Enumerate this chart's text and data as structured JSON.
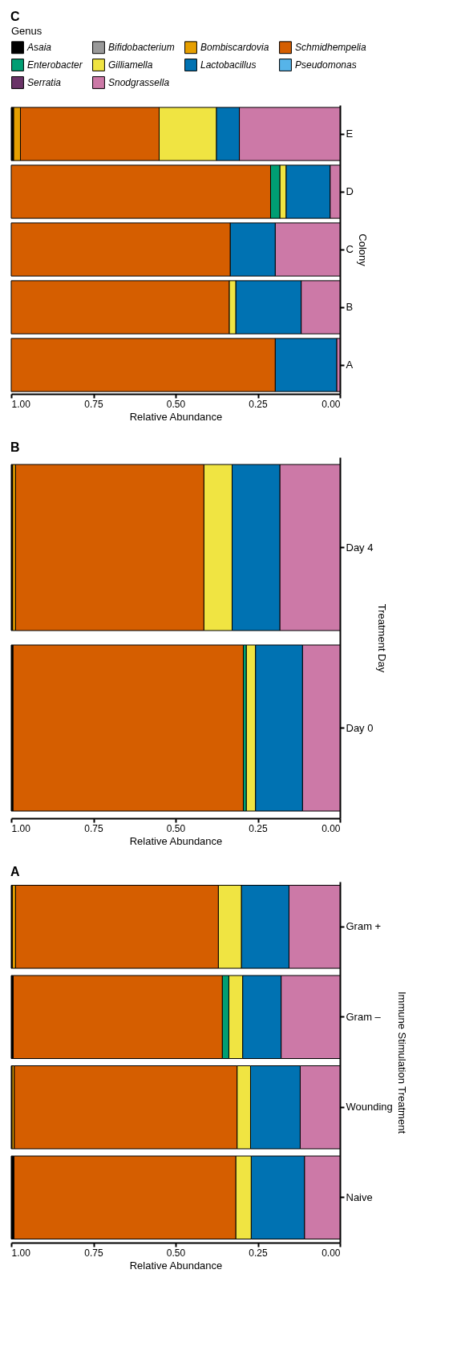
{
  "chart_data": [
    {
      "type": "bar",
      "title": "C",
      "orientation": "horizontal",
      "stacked": true,
      "xlabel": "Relative Abundance",
      "ylabel": "Colony",
      "legend_title": "Genus",
      "legend": "top",
      "grid": false,
      "categories": [
        "E",
        "D",
        "C",
        "B",
        "A"
      ],
      "xlim": [
        1.0,
        0.0
      ],
      "xticks": [
        {
          "value": 1,
          "label": "1.00"
        },
        {
          "value": 0.75,
          "label": "0.75"
        },
        {
          "value": 0.5,
          "label": "0.50"
        },
        {
          "value": 0.25,
          "label": "0.25"
        },
        {
          "value": 0,
          "label": "0.00"
        }
      ],
      "series": [
        {
          "name": "Snodgrassella",
          "color": "#cc79a7",
          "values": [
            0.306,
            0.03,
            0.197,
            0.118,
            0.01
          ]
        },
        {
          "name": "Serratia",
          "color": "#6a3468",
          "values": [
            null,
            null,
            null,
            null,
            null
          ]
        },
        {
          "name": "Pseudomonas",
          "color": "#56b4e9",
          "values": [
            null,
            null,
            null,
            null,
            null
          ]
        },
        {
          "name": "Lactobacillus",
          "color": "#0072b2",
          "values": [
            0.07,
            0.134,
            0.137,
            0.199,
            0.187
          ]
        },
        {
          "name": "Gilliamella",
          "color": "#f0e442",
          "values": [
            0.174,
            0.019,
            null,
            0.02,
            null
          ]
        },
        {
          "name": "Enterobacter",
          "color": "#009e73",
          "values": [
            null,
            0.028,
            null,
            null,
            null
          ]
        },
        {
          "name": "Schmidhempelia",
          "color": "#d55e00",
          "values": [
            0.422,
            0.789,
            0.666,
            0.663,
            0.803
          ]
        },
        {
          "name": "Bombiscardovia",
          "color": "#e69f00",
          "values": [
            0.021,
            null,
            null,
            null,
            null
          ]
        },
        {
          "name": "Bifidobacterium",
          "color": "#999999",
          "values": [
            null,
            null,
            null,
            null,
            null
          ]
        },
        {
          "name": "Asaia",
          "color": "#000000",
          "values": [
            0.007,
            null,
            null,
            null,
            null
          ]
        }
      ]
    },
    {
      "type": "bar",
      "title": "B",
      "orientation": "horizontal",
      "stacked": true,
      "xlabel": "Relative Abundance",
      "ylabel": "Treatment Day",
      "grid": false,
      "categories": [
        "Day 4",
        "Day 0"
      ],
      "xlim": [
        1.0,
        0.0
      ],
      "xticks": [
        {
          "value": 1,
          "label": "1.00"
        },
        {
          "value": 0.75,
          "label": "0.75"
        },
        {
          "value": 0.5,
          "label": "0.50"
        },
        {
          "value": 0.25,
          "label": "0.25"
        },
        {
          "value": 0,
          "label": "0.00"
        }
      ],
      "series": [
        {
          "color": "#cc79a7",
          "values": [
            0.183,
            0.114
          ]
        },
        {
          "color": "#0072b2",
          "values": [
            0.145,
            0.143
          ]
        },
        {
          "color": "#f0e442",
          "values": [
            0.086,
            0.028
          ]
        },
        {
          "color": "#009e73",
          "values": [
            null,
            0.009
          ]
        },
        {
          "color": "#d55e00",
          "values": [
            0.573,
            0.701
          ]
        },
        {
          "color": "#e69f00",
          "values": [
            0.009,
            null
          ]
        },
        {
          "color": "#000000",
          "values": [
            0.004,
            0.005
          ]
        }
      ]
    },
    {
      "type": "bar",
      "title": "A",
      "orientation": "horizontal",
      "stacked": true,
      "xlabel": "Relative Abundance",
      "ylabel": "Immune Stimulation Treatment",
      "grid": false,
      "categories": [
        "Gram +",
        "Gram –",
        "Wounding",
        "Naive"
      ],
      "xlim": [
        1.0,
        0.0
      ],
      "xticks": [
        {
          "value": 1,
          "label": "1.00"
        },
        {
          "value": 0.75,
          "label": "0.75"
        },
        {
          "value": 0.5,
          "label": "0.50"
        },
        {
          "value": 0.25,
          "label": "0.25"
        },
        {
          "value": 0,
          "label": "0.00"
        }
      ],
      "series": [
        {
          "color": "#cc79a7",
          "values": [
            0.155,
            0.179,
            0.121,
            0.108
          ]
        },
        {
          "color": "#0072b2",
          "values": [
            0.145,
            0.117,
            0.151,
            0.162
          ]
        },
        {
          "color": "#f0e442",
          "values": [
            0.07,
            0.042,
            0.041,
            0.047
          ]
        },
        {
          "color": "#009e73",
          "values": [
            null,
            0.02,
            null,
            null
          ]
        },
        {
          "color": "#d55e00",
          "values": [
            0.617,
            0.636,
            0.678,
            0.675
          ]
        },
        {
          "color": "#e69f00",
          "values": [
            0.01,
            null,
            0.007,
            null
          ]
        },
        {
          "color": "#000000",
          "values": [
            0.003,
            0.006,
            0.002,
            0.008
          ]
        }
      ]
    }
  ]
}
